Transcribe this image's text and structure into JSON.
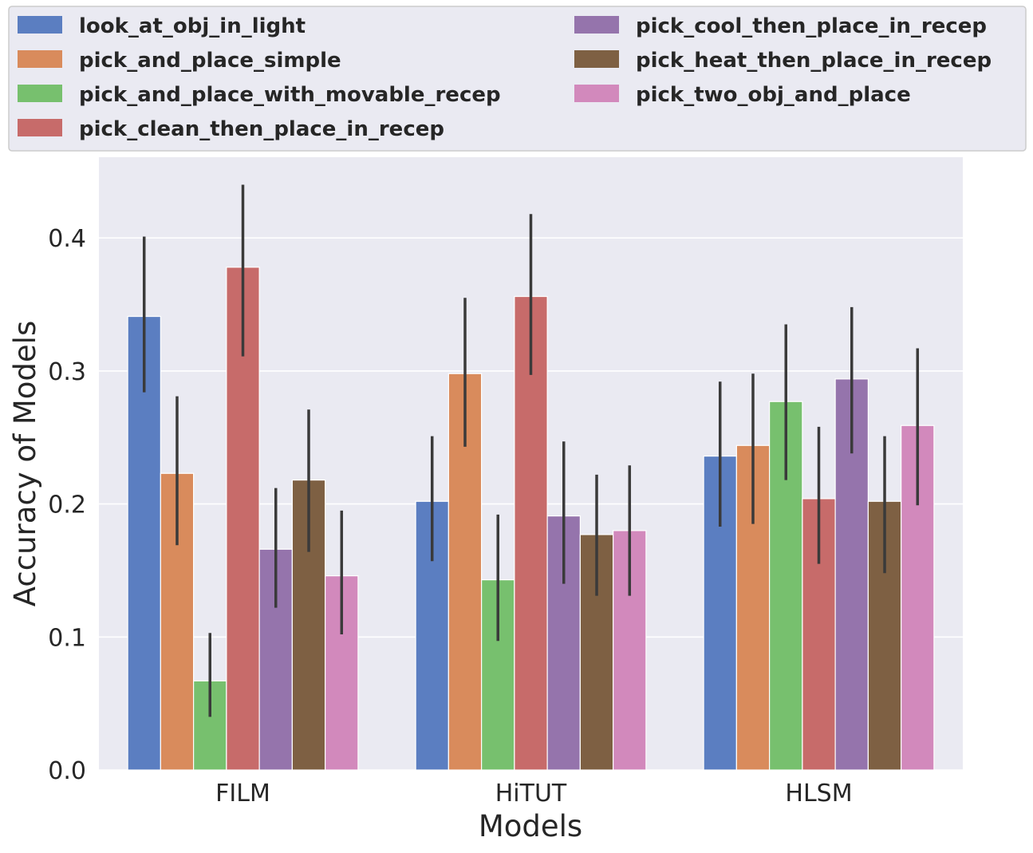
{
  "chart_data": {
    "type": "bar",
    "title": "",
    "xlabel": "Models",
    "ylabel": "Accuracy of Models",
    "categories": [
      "FILM",
      "HiTUT",
      "HLSM"
    ],
    "ylim": [
      0.0,
      0.46
    ],
    "yticks": [
      0.0,
      0.1,
      0.2,
      0.3,
      0.4
    ],
    "ytick_labels": [
      "0.0",
      "0.1",
      "0.2",
      "0.3",
      "0.4"
    ],
    "grid": true,
    "legend_position": "top",
    "error_bars": true,
    "colors": {
      "plot_background": "#eaeaf2",
      "grid": "#ffffff",
      "error_bar": "#3a3a3a",
      "legend_background": "#eaeaf2",
      "legend_border": "#cccccc",
      "text": "#262626"
    },
    "series": [
      {
        "name": "look_at_obj_in_light",
        "color": "#5b7ec1",
        "values": [
          0.341,
          0.202,
          0.236
        ],
        "err_low": [
          0.284,
          0.157,
          0.183
        ],
        "err_high": [
          0.401,
          0.251,
          0.292
        ]
      },
      {
        "name": "pick_and_place_simple",
        "color": "#d98b5c",
        "values": [
          0.223,
          0.298,
          0.244
        ],
        "err_low": [
          0.169,
          0.243,
          0.185
        ],
        "err_high": [
          0.281,
          0.355,
          0.298
        ]
      },
      {
        "name": "pick_and_place_with_movable_recep",
        "color": "#77c06e",
        "values": [
          0.067,
          0.143,
          0.277
        ],
        "err_low": [
          0.04,
          0.097,
          0.218
        ],
        "err_high": [
          0.103,
          0.192,
          0.335
        ]
      },
      {
        "name": "pick_clean_then_place_in_recep",
        "color": "#c76b6a",
        "values": [
          0.378,
          0.356,
          0.204
        ],
        "err_low": [
          0.311,
          0.297,
          0.155
        ],
        "err_high": [
          0.44,
          0.418,
          0.258
        ]
      },
      {
        "name": "pick_cool_then_place_in_recep",
        "color": "#9574ac",
        "values": [
          0.166,
          0.191,
          0.294
        ],
        "err_low": [
          0.122,
          0.14,
          0.238
        ],
        "err_high": [
          0.212,
          0.247,
          0.348
        ]
      },
      {
        "name": "pick_heat_then_place_in_recep",
        "color": "#7e6043",
        "values": [
          0.218,
          0.177,
          0.202
        ],
        "err_low": [
          0.164,
          0.131,
          0.148
        ],
        "err_high": [
          0.271,
          0.222,
          0.251
        ]
      },
      {
        "name": "pick_two_obj_and_place",
        "color": "#d289bc",
        "values": [
          0.146,
          0.18,
          0.259
        ],
        "err_low": [
          0.102,
          0.131,
          0.199
        ],
        "err_high": [
          0.195,
          0.229,
          0.317
        ]
      }
    ]
  }
}
